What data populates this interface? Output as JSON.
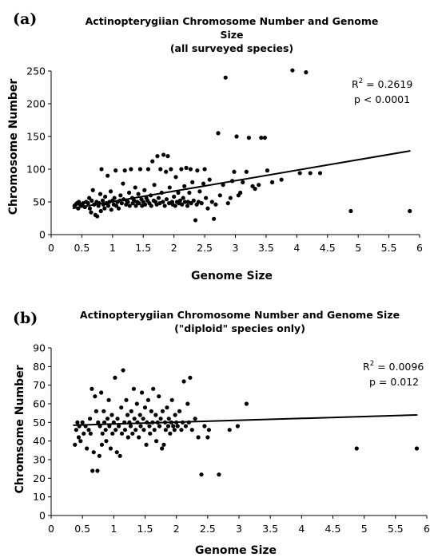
{
  "chart_data": [
    {
      "type": "scatter",
      "panel_label": "(a)",
      "title_lines": [
        "Actinopterygiian Chromosome Number and Genome",
        "Size",
        "(all surveyed species)"
      ],
      "xlabel": "Genome Size",
      "ylabel": "Chromosome Number",
      "xlim": [
        0,
        6
      ],
      "ylim": [
        0,
        250
      ],
      "xticks": [
        "0",
        "0.5",
        "1",
        "1.5",
        "2",
        "2.5",
        "3",
        "3.5",
        "4",
        "4.5",
        "5",
        "5.5",
        "6"
      ],
      "yticks": [
        "0",
        "50",
        "100",
        "150",
        "200",
        "250"
      ],
      "stats": {
        "r2_prefix": "R",
        "r2_sup": "2",
        "r2_value": " = 0.2619",
        "p": "p < 0.0001"
      },
      "trendline": {
        "x": [
          0.35,
          5.85
        ],
        "y": [
          40,
          128
        ]
      },
      "points": [
        [
          0.38,
          44
        ],
        [
          0.4,
          46
        ],
        [
          0.42,
          48
        ],
        [
          0.44,
          40
        ],
        [
          0.45,
          50
        ],
        [
          0.47,
          46
        ],
        [
          0.5,
          44
        ],
        [
          0.52,
          48
        ],
        [
          0.55,
          42
        ],
        [
          0.57,
          50
        ],
        [
          0.6,
          48
        ],
        [
          0.62,
          56
        ],
        [
          0.63,
          40
        ],
        [
          0.65,
          34
        ],
        [
          0.66,
          52
        ],
        [
          0.68,
          68
        ],
        [
          0.7,
          46
        ],
        [
          0.72,
          30
        ],
        [
          0.74,
          50
        ],
        [
          0.75,
          28
        ],
        [
          0.77,
          44
        ],
        [
          0.78,
          48
        ],
        [
          0.8,
          62
        ],
        [
          0.81,
          36
        ],
        [
          0.82,
          100
        ],
        [
          0.84,
          52
        ],
        [
          0.85,
          46
        ],
        [
          0.87,
          40
        ],
        [
          0.88,
          58
        ],
        [
          0.9,
          48
        ],
        [
          0.92,
          90
        ],
        [
          0.93,
          44
        ],
        [
          0.95,
          50
        ],
        [
          0.97,
          66
        ],
        [
          0.98,
          38
        ],
        [
          1.0,
          52
        ],
        [
          1.02,
          46
        ],
        [
          1.03,
          56
        ],
        [
          1.05,
          98
        ],
        [
          1.06,
          44
        ],
        [
          1.08,
          50
        ],
        [
          1.1,
          40
        ],
        [
          1.12,
          52
        ],
        [
          1.13,
          60
        ],
        [
          1.15,
          48
        ],
        [
          1.17,
          78
        ],
        [
          1.18,
          54
        ],
        [
          1.2,
          98
        ],
        [
          1.22,
          46
        ],
        [
          1.23,
          52
        ],
        [
          1.25,
          50
        ],
        [
          1.27,
          64
        ],
        [
          1.28,
          44
        ],
        [
          1.3,
          100
        ],
        [
          1.32,
          56
        ],
        [
          1.33,
          48
        ],
        [
          1.35,
          52
        ],
        [
          1.37,
          72
        ],
        [
          1.38,
          44
        ],
        [
          1.4,
          50
        ],
        [
          1.42,
          62
        ],
        [
          1.43,
          48
        ],
        [
          1.45,
          100
        ],
        [
          1.47,
          54
        ],
        [
          1.48,
          44
        ],
        [
          1.5,
          50
        ],
        [
          1.52,
          68
        ],
        [
          1.53,
          46
        ],
        [
          1.55,
          56
        ],
        [
          1.57,
          52
        ],
        [
          1.58,
          100
        ],
        [
          1.6,
          48
        ],
        [
          1.62,
          60
        ],
        [
          1.63,
          44
        ],
        [
          1.65,
          112
        ],
        [
          1.67,
          52
        ],
        [
          1.68,
          76
        ],
        [
          1.7,
          50
        ],
        [
          1.72,
          46
        ],
        [
          1.73,
          120
        ],
        [
          1.75,
          56
        ],
        [
          1.77,
          48
        ],
        [
          1.78,
          100
        ],
        [
          1.8,
          64
        ],
        [
          1.82,
          50
        ],
        [
          1.83,
          122
        ],
        [
          1.85,
          44
        ],
        [
          1.87,
          96
        ],
        [
          1.88,
          54
        ],
        [
          1.9,
          120
        ],
        [
          1.92,
          48
        ],
        [
          1.93,
          72
        ],
        [
          1.95,
          100
        ],
        [
          1.97,
          50
        ],
        [
          1.98,
          46
        ],
        [
          2.0,
          58
        ],
        [
          2.02,
          44
        ],
        [
          2.03,
          88
        ],
        [
          2.05,
          50
        ],
        [
          2.07,
          64
        ],
        [
          2.08,
          48
        ],
        [
          2.1,
          52
        ],
        [
          2.12,
          100
        ],
        [
          2.13,
          46
        ],
        [
          2.15,
          56
        ],
        [
          2.17,
          74
        ],
        [
          2.18,
          50
        ],
        [
          2.2,
          102
        ],
        [
          2.22,
          44
        ],
        [
          2.23,
          50
        ],
        [
          2.25,
          64
        ],
        [
          2.27,
          100
        ],
        [
          2.28,
          48
        ],
        [
          2.3,
          80
        ],
        [
          2.32,
          52
        ],
        [
          2.35,
          22
        ],
        [
          2.37,
          46
        ],
        [
          2.38,
          98
        ],
        [
          2.4,
          50
        ],
        [
          2.42,
          66
        ],
        [
          2.45,
          48
        ],
        [
          2.48,
          78
        ],
        [
          2.5,
          100
        ],
        [
          2.52,
          56
        ],
        [
          2.55,
          40
        ],
        [
          2.58,
          84
        ],
        [
          2.62,
          50
        ],
        [
          2.65,
          24
        ],
        [
          2.68,
          46
        ],
        [
          2.72,
          155
        ],
        [
          2.75,
          60
        ],
        [
          2.8,
          76
        ],
        [
          2.84,
          240
        ],
        [
          2.88,
          48
        ],
        [
          2.92,
          56
        ],
        [
          2.95,
          82
        ],
        [
          2.98,
          96
        ],
        [
          3.02,
          150
        ],
        [
          3.05,
          60
        ],
        [
          3.08,
          64
        ],
        [
          3.12,
          80
        ],
        [
          3.18,
          96
        ],
        [
          3.22,
          148
        ],
        [
          3.28,
          74
        ],
        [
          3.32,
          70
        ],
        [
          3.38,
          76
        ],
        [
          3.42,
          148
        ],
        [
          3.48,
          148
        ],
        [
          3.52,
          98
        ],
        [
          3.6,
          80
        ],
        [
          3.75,
          84
        ],
        [
          3.93,
          251
        ],
        [
          4.05,
          94
        ],
        [
          4.15,
          248
        ],
        [
          4.22,
          94
        ],
        [
          4.38,
          94
        ],
        [
          4.88,
          36
        ],
        [
          5.84,
          36
        ]
      ]
    },
    {
      "type": "scatter",
      "panel_label": "(b)",
      "title_lines": [
        "Actinopterygiian Chromosome Number and Genome Size",
        "(\"diploid\" species only)"
      ],
      "xlabel": "Genome Size",
      "ylabel": "Chromsome Number",
      "xlim": [
        0,
        6
      ],
      "ylim": [
        0,
        90
      ],
      "xticks": [
        "0",
        "0.5",
        "1",
        "1.5",
        "2",
        "2.5",
        "3",
        "3.5",
        "4",
        "4.5",
        "5",
        "5.5",
        "6"
      ],
      "yticks": [
        "0",
        "10",
        "20",
        "30",
        "40",
        "50",
        "60",
        "70",
        "80",
        "90"
      ],
      "stats": {
        "r2_prefix": "R",
        "r2_sup": "2",
        "r2_value": " = 0.0096",
        "p": "p = 0.012"
      },
      "trendline": {
        "x": [
          0.35,
          5.85
        ],
        "y": [
          48.5,
          54
        ]
      },
      "points": [
        [
          0.38,
          38
        ],
        [
          0.4,
          46
        ],
        [
          0.42,
          50
        ],
        [
          0.44,
          42
        ],
        [
          0.45,
          48
        ],
        [
          0.47,
          40
        ],
        [
          0.5,
          50
        ],
        [
          0.52,
          44
        ],
        [
          0.55,
          48
        ],
        [
          0.57,
          36
        ],
        [
          0.6,
          46
        ],
        [
          0.62,
          52
        ],
        [
          0.63,
          44
        ],
        [
          0.65,
          68
        ],
        [
          0.66,
          24
        ],
        [
          0.68,
          34
        ],
        [
          0.7,
          64
        ],
        [
          0.72,
          56
        ],
        [
          0.74,
          24
        ],
        [
          0.75,
          50
        ],
        [
          0.77,
          32
        ],
        [
          0.78,
          48
        ],
        [
          0.8,
          66
        ],
        [
          0.81,
          38
        ],
        [
          0.82,
          44
        ],
        [
          0.84,
          56
        ],
        [
          0.85,
          50
        ],
        [
          0.87,
          46
        ],
        [
          0.88,
          40
        ],
        [
          0.9,
          52
        ],
        [
          0.92,
          62
        ],
        [
          0.93,
          48
        ],
        [
          0.95,
          36
        ],
        [
          0.97,
          54
        ],
        [
          0.98,
          44
        ],
        [
          1.0,
          50
        ],
        [
          1.02,
          74
        ],
        [
          1.03,
          46
        ],
        [
          1.05,
          34
        ],
        [
          1.06,
          52
        ],
        [
          1.08,
          48
        ],
        [
          1.1,
          32
        ],
        [
          1.12,
          58
        ],
        [
          1.13,
          44
        ],
        [
          1.15,
          78
        ],
        [
          1.17,
          50
        ],
        [
          1.18,
          46
        ],
        [
          1.2,
          62
        ],
        [
          1.22,
          54
        ],
        [
          1.23,
          42
        ],
        [
          1.25,
          50
        ],
        [
          1.27,
          48
        ],
        [
          1.28,
          56
        ],
        [
          1.3,
          44
        ],
        [
          1.32,
          68
        ],
        [
          1.33,
          52
        ],
        [
          1.35,
          46
        ],
        [
          1.37,
          60
        ],
        [
          1.38,
          50
        ],
        [
          1.4,
          42
        ],
        [
          1.42,
          54
        ],
        [
          1.43,
          48
        ],
        [
          1.45,
          66
        ],
        [
          1.47,
          52
        ],
        [
          1.48,
          46
        ],
        [
          1.5,
          58
        ],
        [
          1.52,
          38
        ],
        [
          1.53,
          50
        ],
        [
          1.55,
          62
        ],
        [
          1.57,
          48
        ],
        [
          1.58,
          44
        ],
        [
          1.6,
          56
        ],
        [
          1.62,
          50
        ],
        [
          1.63,
          68
        ],
        [
          1.65,
          46
        ],
        [
          1.67,
          54
        ],
        [
          1.68,
          40
        ],
        [
          1.7,
          50
        ],
        [
          1.72,
          64
        ],
        [
          1.73,
          48
        ],
        [
          1.75,
          52
        ],
        [
          1.77,
          36
        ],
        [
          1.78,
          56
        ],
        [
          1.8,
          38
        ],
        [
          1.82,
          50
        ],
        [
          1.83,
          46
        ],
        [
          1.85,
          58
        ],
        [
          1.87,
          48
        ],
        [
          1.88,
          52
        ],
        [
          1.9,
          44
        ],
        [
          1.92,
          50
        ],
        [
          1.93,
          62
        ],
        [
          1.95,
          48
        ],
        [
          1.97,
          46
        ],
        [
          1.98,
          54
        ],
        [
          2.0,
          50
        ],
        [
          2.02,
          48
        ],
        [
          2.05,
          56
        ],
        [
          2.08,
          46
        ],
        [
          2.1,
          50
        ],
        [
          2.12,
          72
        ],
        [
          2.15,
          48
        ],
        [
          2.18,
          60
        ],
        [
          2.2,
          50
        ],
        [
          2.22,
          74
        ],
        [
          2.25,
          46
        ],
        [
          2.3,
          52
        ],
        [
          2.35,
          42
        ],
        [
          2.4,
          22
        ],
        [
          2.45,
          48
        ],
        [
          2.5,
          42
        ],
        [
          2.52,
          46
        ],
        [
          2.68,
          22
        ],
        [
          2.85,
          46
        ],
        [
          2.98,
          48
        ],
        [
          3.12,
          60
        ],
        [
          4.88,
          36
        ],
        [
          5.84,
          36
        ]
      ]
    }
  ]
}
